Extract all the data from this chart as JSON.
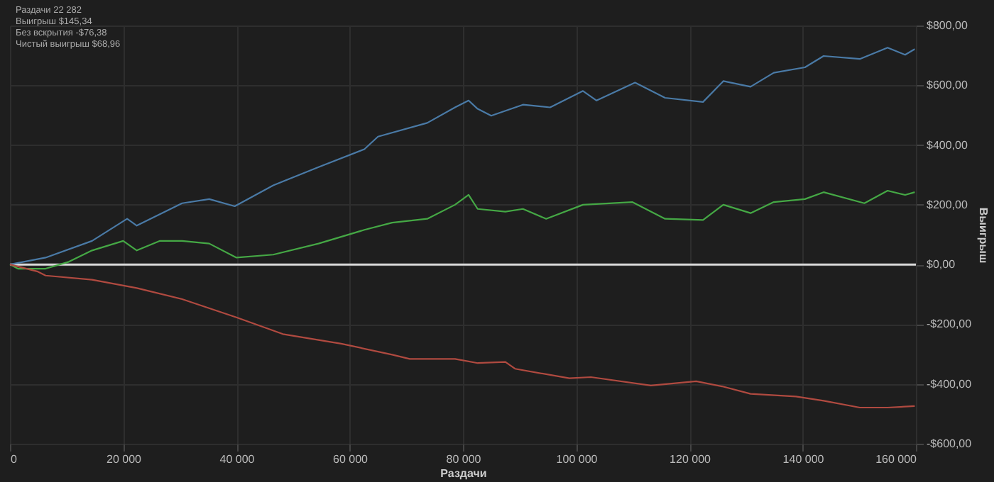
{
  "chart_data": {
    "type": "line",
    "xlabel": "Раздачи",
    "ylabel": "Выигрыш",
    "annotations": [
      "Раздачи 22 282",
      "Выигрыш $145,34",
      "Без вскрытия -$76,38",
      "Чистый выигрыш $68,96"
    ],
    "xlim": [
      0,
      160000
    ],
    "xticks": [
      {
        "value": 0,
        "label": "0"
      },
      {
        "value": 20000,
        "label": "20 000"
      },
      {
        "value": 40000,
        "label": "40 000"
      },
      {
        "value": 60000,
        "label": "60 000"
      },
      {
        "value": 80000,
        "label": "80 000"
      },
      {
        "value": 100000,
        "label": "100 000"
      },
      {
        "value": 120000,
        "label": "120 000"
      },
      {
        "value": 140000,
        "label": "140 000"
      },
      {
        "value": 160000,
        "label": "160 000"
      }
    ],
    "ylim": [
      -600,
      800
    ],
    "yticks": [
      {
        "value": -600,
        "label": "-$600,00"
      },
      {
        "value": -400,
        "label": "-$400,00"
      },
      {
        "value": -200,
        "label": "-$200,00"
      },
      {
        "value": 0,
        "label": "$0,00"
      },
      {
        "value": 200,
        "label": "$200,00"
      },
      {
        "value": 400,
        "label": "$400,00"
      },
      {
        "value": 600,
        "label": "$600,00"
      },
      {
        "value": 800,
        "label": "$800,00"
      }
    ],
    "grid": true,
    "ref_lines": [
      {
        "axis": "y",
        "value": 0,
        "color": "#d8d8d8"
      }
    ],
    "series": [
      {
        "color": "#4a7aa6",
        "x": [
          0,
          6300,
          14500,
          20700,
          22400,
          30400,
          35200,
          39700,
          46500,
          54500,
          62600,
          65000,
          73700,
          78600,
          81000,
          82600,
          85000,
          90600,
          95400,
          101200,
          103600,
          110400,
          115700,
          122400,
          126000,
          130800,
          134900,
          140400,
          143700,
          150100,
          155000,
          158100,
          159800
        ],
        "values": [
          0,
          23,
          79,
          153,
          130,
          205,
          219,
          195,
          265,
          326,
          386,
          428,
          474,
          526,
          549,
          521,
          498,
          535,
          526,
          581,
          549,
          609,
          558,
          544,
          614,
          595,
          642,
          660,
          698,
          688,
          726,
          702,
          721
        ]
      },
      {
        "color": "#45a845",
        "x": [
          0,
          1400,
          6300,
          10400,
          14500,
          20000,
          22400,
          26500,
          30400,
          35200,
          40000,
          46500,
          54500,
          62600,
          67500,
          73700,
          78600,
          81000,
          82600,
          87500,
          90600,
          94700,
          101200,
          109900,
          115700,
          122400,
          126000,
          130800,
          134900,
          140400,
          143700,
          150900,
          155000,
          158100,
          159800
        ],
        "values": [
          0,
          -14,
          -14,
          9,
          47,
          79,
          47,
          79,
          79,
          70,
          23,
          33,
          70,
          116,
          140,
          153,
          200,
          233,
          186,
          177,
          186,
          153,
          200,
          209,
          153,
          149,
          200,
          172,
          209,
          219,
          242,
          205,
          247,
          233,
          242
        ]
      },
      {
        "color": "#b04a40",
        "x": [
          0,
          4800,
          6300,
          14500,
          22400,
          30400,
          40000,
          48200,
          58500,
          67500,
          70600,
          78600,
          82600,
          87500,
          89200,
          98800,
          102600,
          113200,
          121200,
          126000,
          130800,
          138800,
          143700,
          150100,
          155000,
          159800
        ],
        "values": [
          0,
          -23,
          -37,
          -51,
          -79,
          -116,
          -177,
          -233,
          -265,
          -302,
          -316,
          -316,
          -330,
          -326,
          -349,
          -381,
          -377,
          -405,
          -391,
          -409,
          -433,
          -442,
          -456,
          -479,
          -479,
          -474
        ]
      }
    ]
  }
}
